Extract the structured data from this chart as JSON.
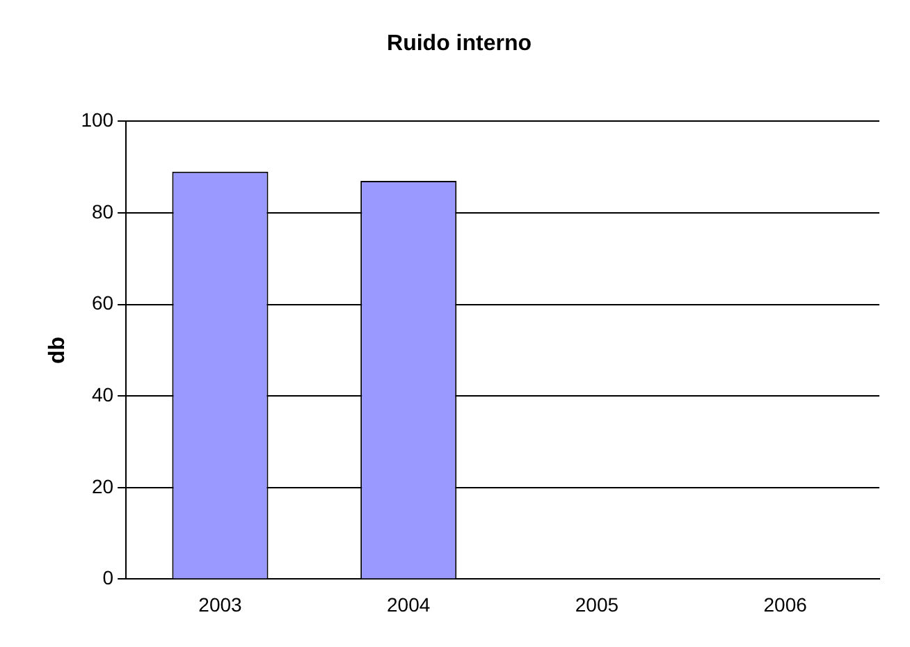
{
  "chart_data": {
    "type": "bar",
    "title": "Ruido interno",
    "ylabel": "db",
    "categories": [
      "2003",
      "2004",
      "2005",
      "2006"
    ],
    "values": [
      89,
      87,
      null,
      null
    ],
    "color": "#9999ff",
    "ylim": [
      0,
      100
    ],
    "yticks": [
      0,
      20,
      40,
      60,
      80,
      100
    ],
    "grid": "y",
    "legend": false
  }
}
